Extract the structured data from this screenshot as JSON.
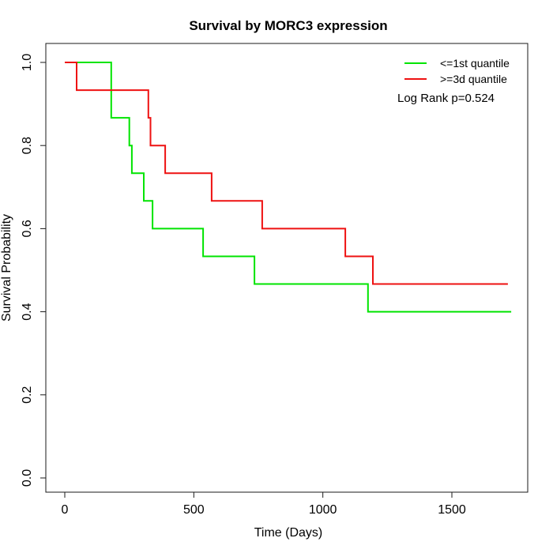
{
  "title": "Survival by MORC3 expression",
  "xlabel": "Time (Days)",
  "ylabel": "Survival Probability",
  "legend": {
    "items": [
      {
        "label": "<=1st quantile",
        "color": "#00E400",
        "icon": "green-line-swatch"
      },
      {
        "label": ">=3d quantile",
        "color": "#EE1111",
        "icon": "red-line-swatch"
      }
    ],
    "annotation": "Log Rank p=0.524"
  },
  "chart_data": {
    "type": "line",
    "subtype": "kaplan-meier-step",
    "title": "Survival by MORC3 expression",
    "xlabel": "Time (Days)",
    "ylabel": "Survival Probability",
    "xlim": [
      0,
      1725
    ],
    "ylim": [
      0.0,
      1.0
    ],
    "xticks": [
      0,
      500,
      1000,
      1500
    ],
    "yticks": [
      0.0,
      0.2,
      0.4,
      0.6,
      0.8,
      1.0
    ],
    "grid": false,
    "legend_position": "top-right",
    "annotation": "Log Rank p=0.524",
    "series": [
      {
        "name": "<=1st quantile",
        "color": "#00E400",
        "steps": [
          [
            0,
            1.0
          ],
          [
            180,
            0.8667
          ],
          [
            250,
            0.8
          ],
          [
            260,
            0.7333
          ],
          [
            306,
            0.6667
          ],
          [
            340,
            0.6
          ],
          [
            536,
            0.5333
          ],
          [
            735,
            0.4667
          ],
          [
            1175,
            0.4
          ],
          [
            1730,
            0.4
          ]
        ]
      },
      {
        "name": ">=3d quantile",
        "color": "#EE1111",
        "steps": [
          [
            0,
            1.0
          ],
          [
            46,
            0.9333
          ],
          [
            324,
            0.8667
          ],
          [
            332,
            0.8
          ],
          [
            389,
            0.7333
          ],
          [
            569,
            0.6667
          ],
          [
            765,
            0.6
          ],
          [
            1087,
            0.5333
          ],
          [
            1194,
            0.4667
          ],
          [
            1717,
            0.4667
          ]
        ]
      }
    ]
  }
}
